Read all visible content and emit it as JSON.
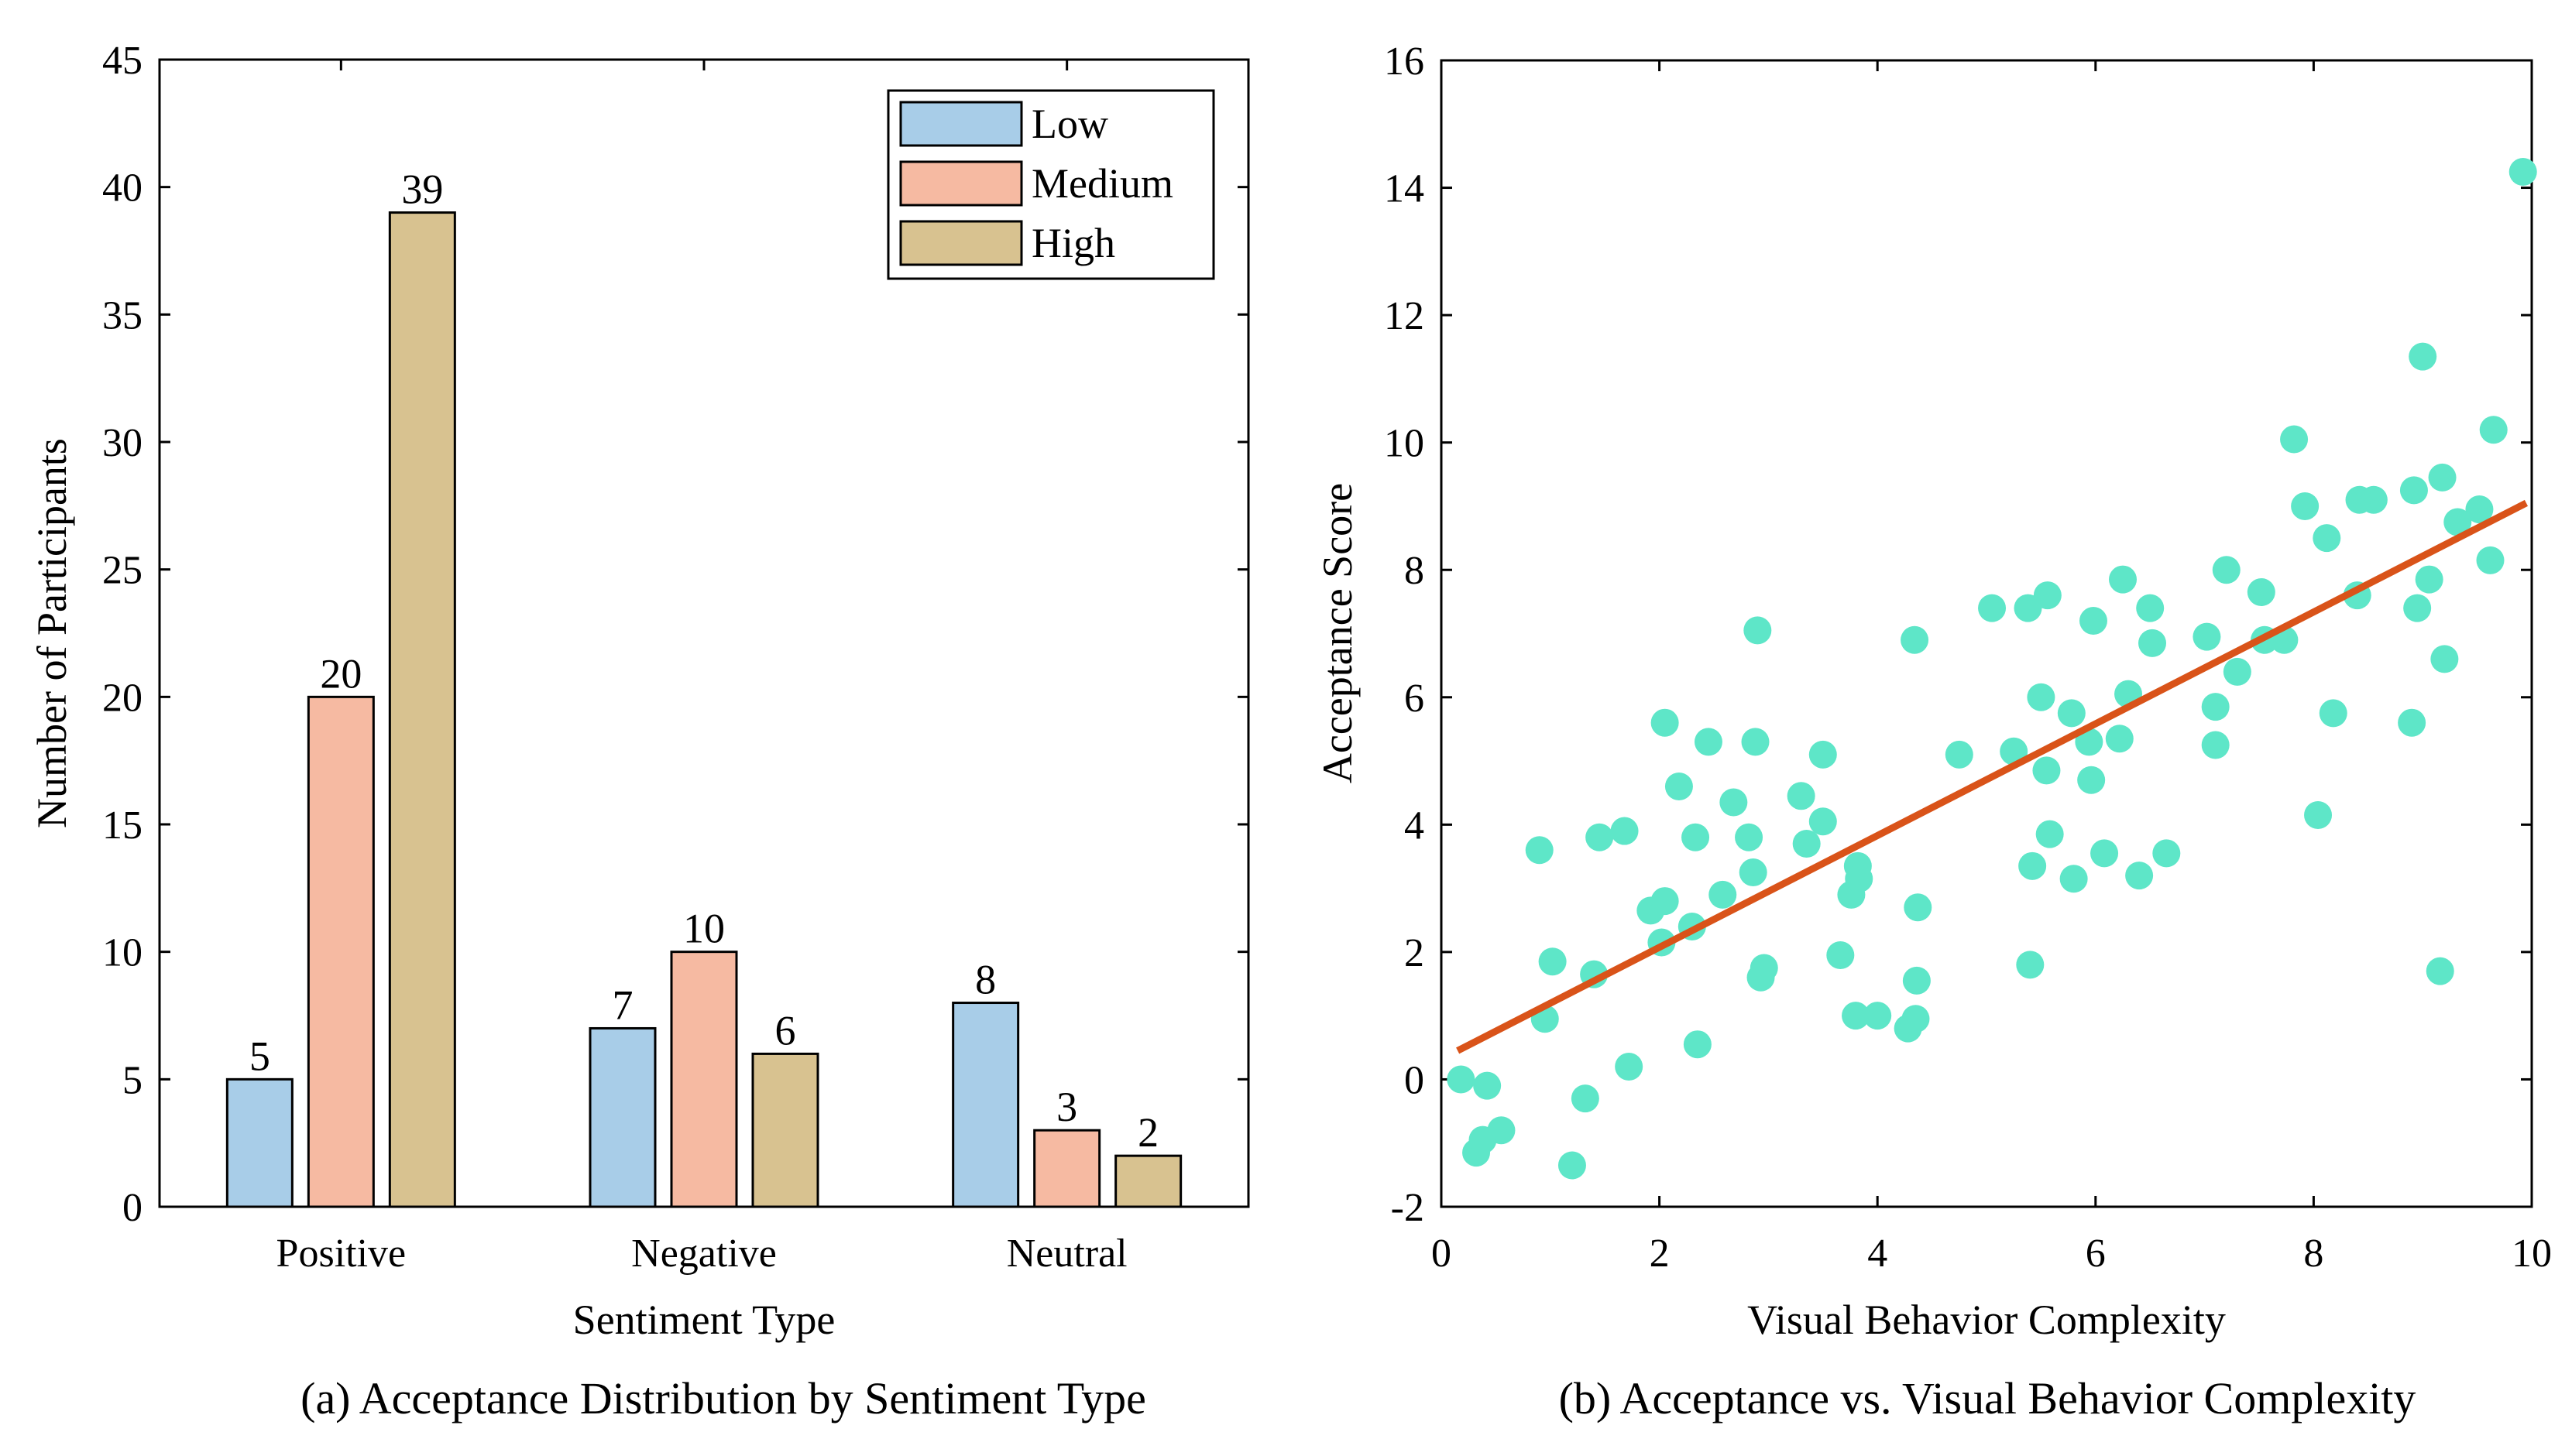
{
  "chart_data": [
    {
      "type": "bar",
      "title": "(a) Acceptance Distribution by Sentiment Type",
      "xlabel": "Sentiment Type",
      "ylabel": "Number of Participants",
      "ylim": [
        0,
        45
      ],
      "yticks": [
        0,
        5,
        10,
        15,
        20,
        25,
        30,
        35,
        40,
        45
      ],
      "categories": [
        "Positive",
        "Negative",
        "Neutral"
      ],
      "series": [
        {
          "name": "Low",
          "color": "#a8cde8",
          "values": [
            5,
            7,
            8
          ]
        },
        {
          "name": "Medium",
          "color": "#f6baa2",
          "values": [
            20,
            10,
            3
          ]
        },
        {
          "name": "High",
          "color": "#d8c290",
          "values": [
            39,
            6,
            2
          ]
        }
      ],
      "legend_position": "top-right",
      "grid": false
    },
    {
      "type": "scatter",
      "title": "(b) Acceptance vs. Visual Behavior Complexity",
      "xlabel": "Visual Behavior Complexity",
      "ylabel": "Acceptance Score",
      "xlim": [
        0,
        10
      ],
      "ylim": [
        -2,
        16
      ],
      "xticks": [
        0,
        2,
        4,
        6,
        8,
        10
      ],
      "yticks": [
        -2,
        0,
        2,
        4,
        6,
        8,
        10,
        12,
        14,
        16
      ],
      "point_color": "#5ee6c8",
      "fit_line": {
        "color": "#d95319",
        "x": [
          0.15,
          9.95
        ],
        "y": [
          0.45,
          9.05
        ]
      },
      "grid": false,
      "points": [
        [
          0.18,
          0.0
        ],
        [
          0.32,
          -1.15
        ],
        [
          0.38,
          -0.95
        ],
        [
          0.42,
          -0.1
        ],
        [
          0.55,
          -0.8
        ],
        [
          0.9,
          3.6
        ],
        [
          0.95,
          0.95
        ],
        [
          1.02,
          1.85
        ],
        [
          1.2,
          -1.35
        ],
        [
          1.32,
          -0.3
        ],
        [
          1.4,
          1.65
        ],
        [
          1.45,
          3.8
        ],
        [
          1.68,
          3.9
        ],
        [
          1.72,
          0.2
        ],
        [
          1.92,
          2.65
        ],
        [
          2.02,
          2.15
        ],
        [
          2.05,
          2.8
        ],
        [
          2.05,
          5.6
        ],
        [
          2.18,
          4.6
        ],
        [
          2.3,
          2.4
        ],
        [
          2.33,
          3.8
        ],
        [
          2.35,
          0.55
        ],
        [
          2.45,
          5.3
        ],
        [
          2.58,
          2.9
        ],
        [
          2.68,
          4.35
        ],
        [
          2.82,
          3.8
        ],
        [
          2.86,
          3.25
        ],
        [
          2.88,
          5.3
        ],
        [
          2.9,
          7.05
        ],
        [
          2.93,
          1.6
        ],
        [
          2.96,
          1.75
        ],
        [
          3.3,
          4.45
        ],
        [
          3.35,
          3.7
        ],
        [
          3.5,
          4.05
        ],
        [
          3.5,
          5.1
        ],
        [
          3.66,
          1.95
        ],
        [
          3.76,
          2.9
        ],
        [
          3.8,
          1.0
        ],
        [
          3.82,
          3.35
        ],
        [
          3.83,
          3.15
        ],
        [
          4.0,
          1.0
        ],
        [
          4.28,
          0.8
        ],
        [
          4.34,
          6.9
        ],
        [
          4.35,
          0.95
        ],
        [
          4.36,
          1.55
        ],
        [
          4.37,
          2.7
        ],
        [
          4.75,
          5.1
        ],
        [
          5.05,
          7.4
        ],
        [
          5.25,
          5.15
        ],
        [
          5.38,
          7.4
        ],
        [
          5.4,
          1.8
        ],
        [
          5.42,
          3.35
        ],
        [
          5.5,
          6.0
        ],
        [
          5.55,
          4.85
        ],
        [
          5.56,
          7.6
        ],
        [
          5.58,
          3.85
        ],
        [
          5.78,
          5.75
        ],
        [
          5.8,
          3.15
        ],
        [
          5.94,
          5.3
        ],
        [
          5.96,
          4.7
        ],
        [
          5.98,
          7.2
        ],
        [
          6.08,
          3.55
        ],
        [
          6.22,
          5.35
        ],
        [
          6.25,
          7.85
        ],
        [
          6.3,
          6.05
        ],
        [
          6.4,
          3.2
        ],
        [
          6.5,
          7.4
        ],
        [
          6.52,
          6.85
        ],
        [
          6.65,
          3.55
        ],
        [
          7.02,
          6.95
        ],
        [
          7.1,
          5.25
        ],
        [
          7.1,
          5.85
        ],
        [
          7.2,
          8.0
        ],
        [
          7.3,
          6.4
        ],
        [
          7.52,
          7.65
        ],
        [
          7.55,
          6.9
        ],
        [
          7.73,
          6.9
        ],
        [
          7.82,
          10.05
        ],
        [
          7.92,
          9.0
        ],
        [
          8.04,
          4.15
        ],
        [
          8.12,
          8.5
        ],
        [
          8.18,
          5.75
        ],
        [
          8.4,
          7.6
        ],
        [
          8.42,
          9.1
        ],
        [
          8.55,
          9.1
        ],
        [
          8.9,
          5.6
        ],
        [
          8.92,
          9.25
        ],
        [
          8.95,
          7.4
        ],
        [
          9.0,
          11.35
        ],
        [
          9.06,
          7.85
        ],
        [
          9.16,
          1.7
        ],
        [
          9.18,
          9.45
        ],
        [
          9.2,
          6.6
        ],
        [
          9.32,
          8.75
        ],
        [
          9.52,
          8.95
        ],
        [
          9.62,
          8.15
        ],
        [
          9.65,
          10.2
        ],
        [
          9.92,
          14.25
        ]
      ]
    }
  ]
}
